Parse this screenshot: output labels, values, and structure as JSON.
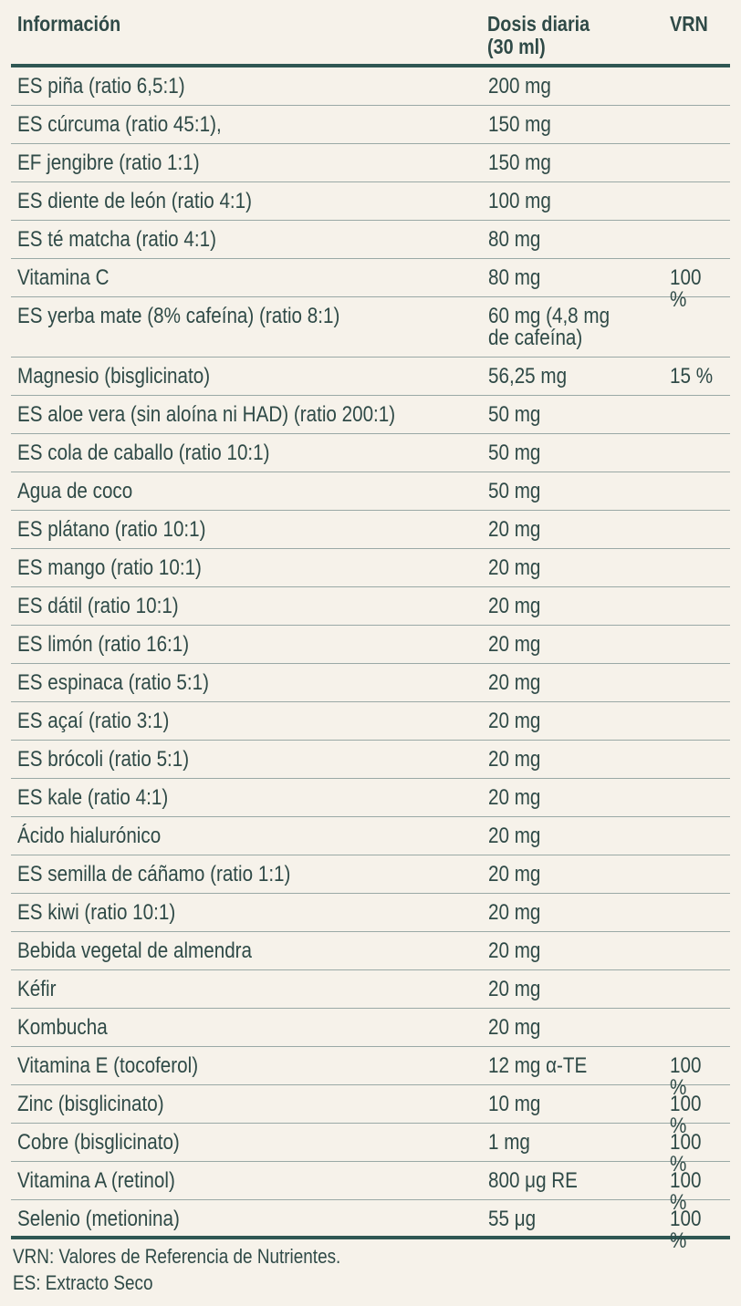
{
  "header": {
    "col1": "Información",
    "col2": "Dosis diaria\n(30 ml)",
    "col3": "VRN"
  },
  "rows": [
    {
      "name": "ES piña (ratio 6,5:1)",
      "dose": "200 mg",
      "vrn": ""
    },
    {
      "name": "ES cúrcuma (ratio 45:1),",
      "dose": "150 mg",
      "vrn": ""
    },
    {
      "name": "EF jengibre  (ratio 1:1)",
      "dose": "150 mg",
      "vrn": ""
    },
    {
      "name": "ES diente de león (ratio 4:1)",
      "dose": "100 mg",
      "vrn": ""
    },
    {
      "name": "ES té matcha (ratio 4:1)",
      "dose": "80 mg",
      "vrn": ""
    },
    {
      "name": "Vitamina C",
      "dose": "80 mg",
      "vrn": "100 %"
    },
    {
      "name": "ES yerba mate (8% cafeína) (ratio 8:1)",
      "dose": "60 mg (4,8 mg\nde cafeína)",
      "vrn": ""
    },
    {
      "name": "Magnesio (bisglicinato)",
      "dose": "56,25 mg",
      "vrn": "15 %"
    },
    {
      "name": "ES aloe vera (sin aloína ni HAD) (ratio 200:1)",
      "dose": "50 mg",
      "vrn": ""
    },
    {
      "name": "ES cola de caballo (ratio 10:1)",
      "dose": "50 mg",
      "vrn": ""
    },
    {
      "name": "Agua de coco",
      "dose": "50 mg",
      "vrn": ""
    },
    {
      "name": "ES plátano (ratio 10:1)",
      "dose": "20 mg",
      "vrn": ""
    },
    {
      "name": "ES mango (ratio 10:1)",
      "dose": "20 mg",
      "vrn": ""
    },
    {
      "name": "ES dátil (ratio 10:1)",
      "dose": "20 mg",
      "vrn": ""
    },
    {
      "name": "ES limón (ratio 16:1)",
      "dose": "20 mg",
      "vrn": ""
    },
    {
      "name": "ES espinaca (ratio 5:1)",
      "dose": "20 mg",
      "vrn": ""
    },
    {
      "name": "ES açaí (ratio 3:1)",
      "dose": "20 mg",
      "vrn": ""
    },
    {
      "name": "ES brócoli (ratio 5:1)",
      "dose": "20 mg",
      "vrn": ""
    },
    {
      "name": "ES kale (ratio 4:1)",
      "dose": "20 mg",
      "vrn": ""
    },
    {
      "name": "Ácido hialurónico",
      "dose": "20 mg",
      "vrn": ""
    },
    {
      "name": "ES semilla de cáñamo (ratio 1:1)",
      "dose": "20 mg",
      "vrn": ""
    },
    {
      "name": "ES kiwi (ratio 10:1)",
      "dose": "20 mg",
      "vrn": ""
    },
    {
      "name": "Bebida vegetal de almendra",
      "dose": "20 mg",
      "vrn": ""
    },
    {
      "name": "Kéfir",
      "dose": "20 mg",
      "vrn": ""
    },
    {
      "name": "Kombucha",
      "dose": "20 mg",
      "vrn": ""
    },
    {
      "name": "Vitamina E (tocoferol)",
      "dose": "12 mg α-TE",
      "vrn": "100 %"
    },
    {
      "name": "Zinc (bisglicinato)",
      "dose": "10 mg",
      "vrn": "100 %"
    },
    {
      "name": "Cobre (bisglicinato)",
      "dose": "1 mg",
      "vrn": "100 %"
    },
    {
      "name": "Vitamina A (retinol)",
      "dose": "800 μg RE",
      "vrn": "100 %"
    },
    {
      "name": "Selenio (metionina)",
      "dose": "55 μg",
      "vrn": "100 %"
    }
  ],
  "footer": {
    "line1": "VRN: Valores de Referencia de Nutrientes.",
    "line2": "ES: Extracto Seco"
  },
  "colors": {
    "background": "#f6f2ea",
    "text": "#2f4a47",
    "rule": "#2f5753"
  }
}
